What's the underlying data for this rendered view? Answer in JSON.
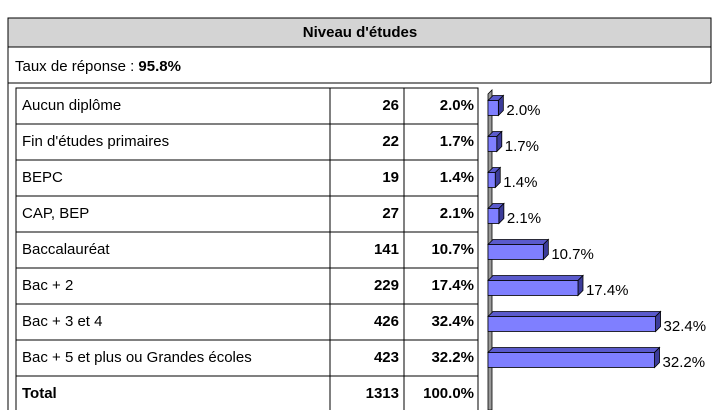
{
  "header": {
    "title": "Niveau d'études"
  },
  "response": {
    "label": "Taux de réponse : ",
    "value": "95.8%"
  },
  "table": {
    "rows": [
      [
        "Aucun diplôme",
        26
      ],
      [
        "Fin d'études primaires",
        22
      ],
      [
        "BEPC",
        19
      ],
      [
        "CAP, BEP",
        27
      ],
      [
        "Baccalauréat",
        141
      ],
      [
        "Bac + 2",
        229
      ],
      [
        "Bac + 3 et 4",
        426
      ],
      [
        "Bac + 5 et plus ou Grandes écoles",
        423
      ]
    ],
    "total": [
      "Total",
      1313,
      "100.0%"
    ]
  },
  "chart_data": {
    "type": "bar",
    "orientation": "horizontal",
    "categories": [
      "Aucun diplôme",
      "Fin d'études primaires",
      "BEPC",
      "CAP, BEP",
      "Baccalauréat",
      "Bac + 2",
      "Bac + 3 et 4",
      "Bac + 5 et plus ou Grandes écoles"
    ],
    "values": [
      2.0,
      1.7,
      1.4,
      2.1,
      10.7,
      17.4,
      32.4,
      32.2
    ],
    "value_labels": [
      "2.0%",
      "1.7%",
      "1.4%",
      "2.1%",
      "10.7%",
      "17.4%",
      "32.4%",
      "32.2%"
    ],
    "color": "#7f7fff",
    "xlim": [
      0,
      35
    ]
  }
}
